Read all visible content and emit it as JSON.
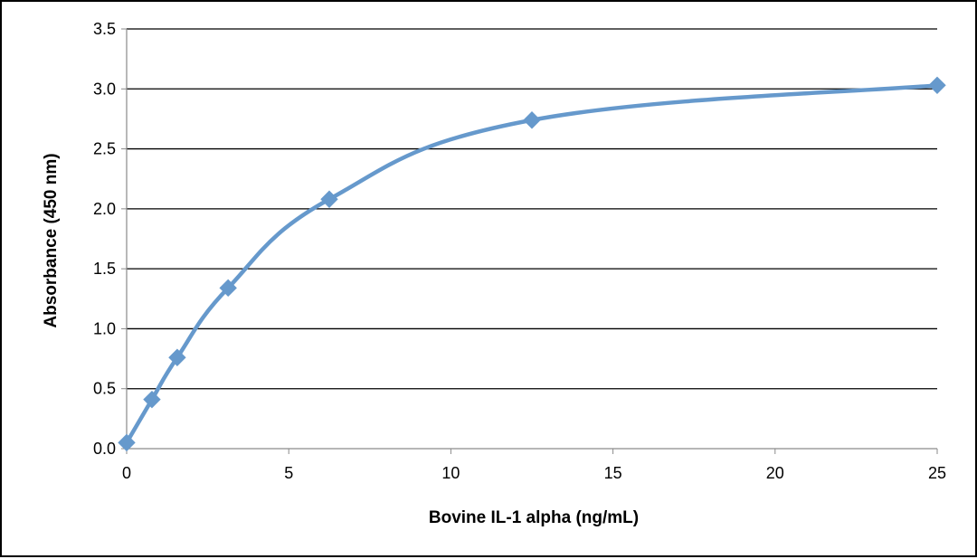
{
  "chart_data": {
    "type": "line",
    "title": "",
    "xlabel": "Bovine IL-1 alpha (ng/mL)",
    "ylabel": "Absorbance (450 nm)",
    "xlim": [
      0,
      25
    ],
    "ylim": [
      0,
      3.5
    ],
    "xticks": [
      "0",
      "5",
      "10",
      "15",
      "20",
      "25"
    ],
    "yticks": [
      "0.0",
      "0.5",
      "1.0",
      "1.5",
      "2.0",
      "2.5",
      "3.0",
      "3.5"
    ],
    "grid": "horizontal",
    "legend": "none",
    "marker": "diamond",
    "line_style": "smoothed",
    "series": [
      {
        "color": "#6699CC",
        "x": [
          0,
          0.78,
          1.56,
          3.13,
          6.25,
          12.5,
          25
        ],
        "y": [
          0.05,
          0.41,
          0.76,
          1.34,
          2.08,
          2.74,
          3.03
        ]
      }
    ]
  }
}
